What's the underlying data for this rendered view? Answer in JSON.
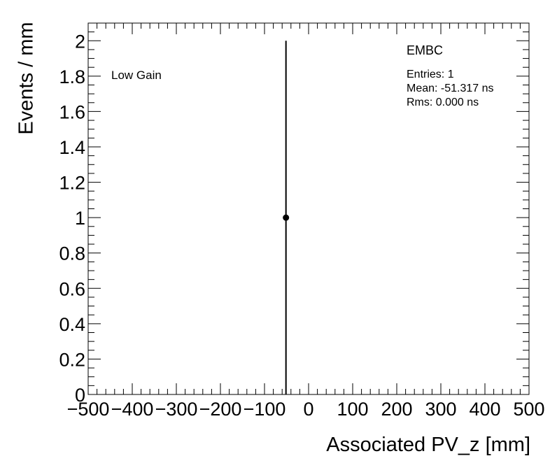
{
  "chart_data": {
    "type": "scatter",
    "title": "EMBC",
    "xlabel": "Associated PV_z [mm]",
    "ylabel": "Events / mm",
    "annotation": "Low Gain",
    "stats": {
      "entries": "Entries: 1",
      "mean": "Mean: -51.317 ns",
      "rms": "Rms: 0.000 ns"
    },
    "xlim": [
      -500,
      500
    ],
    "ylim": [
      0,
      2.1
    ],
    "x_ticks": [
      -500,
      -400,
      -300,
      -200,
      -100,
      0,
      100,
      200,
      300,
      400,
      500
    ],
    "x_tick_labels": [
      "−500",
      "−400",
      "−300",
      "−200",
      "−100",
      "0",
      "100",
      "200",
      "300",
      "400",
      "500"
    ],
    "y_ticks": [
      0,
      0.2,
      0.4,
      0.6,
      0.8,
      1,
      1.2,
      1.4,
      1.6,
      1.8,
      2
    ],
    "y_tick_labels": [
      "0",
      "0.2",
      "0.4",
      "0.6",
      "0.8",
      "1",
      "1.2",
      "1.4",
      "1.6",
      "1.8",
      "2"
    ],
    "grid": false,
    "series": [
      {
        "points": [
          {
            "x": -51.317,
            "y": 1,
            "yerr_low": 1,
            "yerr_high": 1
          }
        ]
      }
    ]
  }
}
